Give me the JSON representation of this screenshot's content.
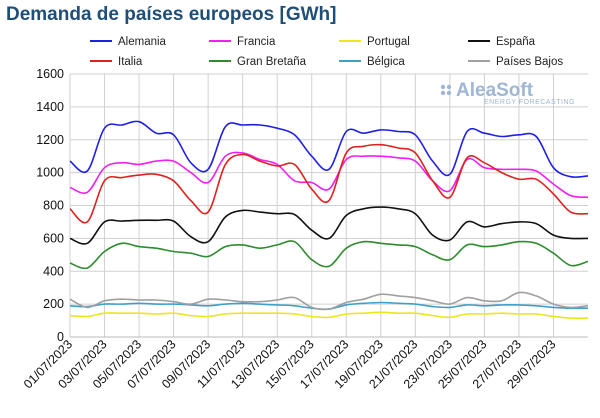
{
  "chart_data": {
    "type": "line",
    "title": "Demanda de países europeos [GWh]",
    "xlabel": "",
    "ylabel": "",
    "ylim": [
      0,
      1600
    ],
    "yticks": [
      0,
      200,
      400,
      600,
      800,
      1000,
      1200,
      1400,
      1600
    ],
    "grid": true,
    "legend_position": "top",
    "x": [
      "01/07/2023",
      "02/07/2023",
      "03/07/2023",
      "04/07/2023",
      "05/07/2023",
      "06/07/2023",
      "07/07/2023",
      "08/07/2023",
      "09/07/2023",
      "10/07/2023",
      "11/07/2023",
      "12/07/2023",
      "13/07/2023",
      "14/07/2023",
      "15/07/2023",
      "16/07/2023",
      "17/07/2023",
      "18/07/2023",
      "19/07/2023",
      "20/07/2023",
      "21/07/2023",
      "22/07/2023",
      "23/07/2023",
      "24/07/2023",
      "25/07/2023",
      "26/07/2023",
      "27/07/2023",
      "28/07/2023",
      "29/07/2023",
      "30/07/2023",
      "31/07/2023"
    ],
    "xtick_labels": [
      "01/07/2023",
      "03/07/2023",
      "05/07/2023",
      "07/07/2023",
      "09/07/2023",
      "11/07/2023",
      "13/07/2023",
      "15/07/2023",
      "17/07/2023",
      "19/07/2023",
      "21/07/2023",
      "23/07/2023",
      "25/07/2023",
      "27/07/2023",
      "29/07/2023"
    ],
    "series": [
      {
        "name": "Alemania",
        "color": "#1f1fe6",
        "values": [
          1070,
          1010,
          1270,
          1290,
          1310,
          1240,
          1230,
          1060,
          1020,
          1280,
          1290,
          1290,
          1270,
          1230,
          1100,
          1020,
          1250,
          1240,
          1260,
          1250,
          1230,
          1070,
          990,
          1250,
          1240,
          1220,
          1230,
          1220,
          1030,
          975,
          980
        ]
      },
      {
        "name": "Francia",
        "color": "#f020f0",
        "values": [
          910,
          880,
          1030,
          1060,
          1050,
          1070,
          1070,
          1000,
          940,
          1100,
          1120,
          1080,
          1050,
          950,
          940,
          900,
          1080,
          1100,
          1100,
          1090,
          1070,
          950,
          890,
          1080,
          1030,
          1020,
          1020,
          1010,
          930,
          860,
          850
        ]
      },
      {
        "name": "Portugal",
        "color": "#e8e81a",
        "values": [
          130,
          125,
          145,
          145,
          145,
          140,
          145,
          130,
          125,
          140,
          145,
          145,
          145,
          140,
          125,
          120,
          140,
          145,
          150,
          145,
          145,
          130,
          120,
          140,
          140,
          145,
          140,
          140,
          125,
          115,
          115
        ]
      },
      {
        "name": "España",
        "color": "#111111",
        "values": [
          600,
          570,
          700,
          705,
          710,
          710,
          705,
          610,
          580,
          730,
          770,
          760,
          750,
          745,
          650,
          600,
          740,
          780,
          790,
          780,
          750,
          620,
          590,
          700,
          670,
          690,
          700,
          690,
          620,
          600,
          600
        ]
      },
      {
        "name": "Italia",
        "color": "#e02020",
        "values": [
          780,
          700,
          950,
          970,
          985,
          990,
          950,
          830,
          760,
          1050,
          1110,
          1070,
          1040,
          1050,
          900,
          830,
          1120,
          1160,
          1170,
          1150,
          1120,
          950,
          850,
          1090,
          1060,
          1000,
          960,
          960,
          870,
          760,
          750
        ]
      },
      {
        "name": "Gran Bretaña",
        "color": "#2e8b2e",
        "values": [
          450,
          420,
          520,
          570,
          550,
          540,
          520,
          510,
          490,
          550,
          560,
          540,
          560,
          580,
          470,
          430,
          540,
          580,
          570,
          560,
          550,
          500,
          470,
          560,
          550,
          560,
          580,
          570,
          510,
          435,
          460
        ]
      },
      {
        "name": "Bélgica",
        "color": "#3ea0c8",
        "values": [
          190,
          185,
          200,
          200,
          205,
          200,
          200,
          195,
          190,
          200,
          205,
          200,
          195,
          190,
          175,
          170,
          195,
          205,
          210,
          205,
          200,
          185,
          180,
          195,
          190,
          195,
          195,
          190,
          180,
          175,
          175
        ]
      },
      {
        "name": "Países Bajos",
        "color": "#a0a0a0",
        "values": [
          230,
          180,
          220,
          230,
          225,
          225,
          215,
          200,
          230,
          225,
          215,
          215,
          225,
          240,
          180,
          170,
          210,
          230,
          260,
          250,
          240,
          220,
          200,
          240,
          220,
          220,
          270,
          250,
          200,
          180,
          190
        ]
      }
    ]
  },
  "logo": {
    "main": "AleaSoft",
    "sub": "ENERGY FORECASTING"
  }
}
